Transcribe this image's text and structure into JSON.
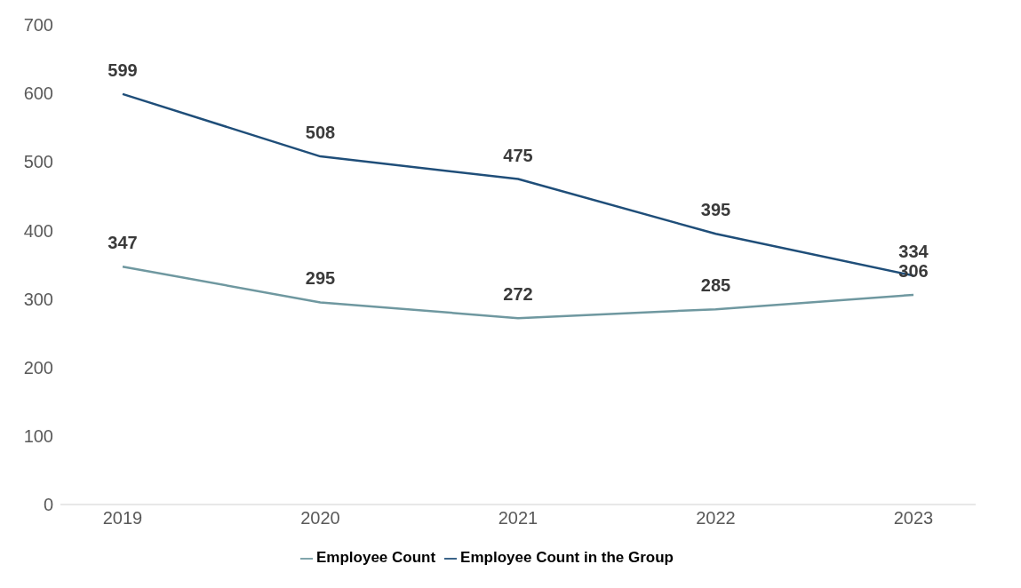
{
  "chart_data": {
    "type": "line",
    "categories": [
      "2019",
      "2020",
      "2021",
      "2022",
      "2023"
    ],
    "series": [
      {
        "name": "Employee Count",
        "color": "#6f98a0",
        "values": [
          347,
          295,
          272,
          285,
          306
        ]
      },
      {
        "name": "Employee Count in the Group",
        "color": "#1f4e79",
        "values": [
          599,
          508,
          475,
          395,
          334
        ]
      }
    ],
    "ylim": [
      0,
      700
    ],
    "yticks": [
      0,
      100,
      200,
      300,
      400,
      500,
      600,
      700
    ],
    "grid": false,
    "legend": "bottom",
    "data_labels": true,
    "marker": "none",
    "line_style": "solid"
  }
}
